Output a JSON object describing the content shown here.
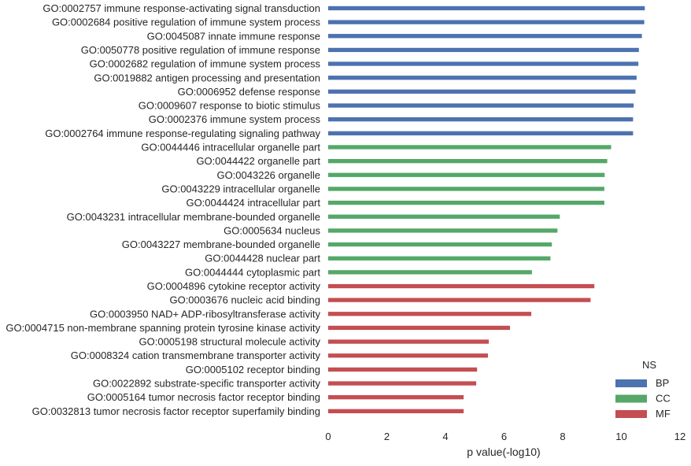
{
  "chart_data": {
    "type": "bar",
    "orientation": "horizontal",
    "xlabel": "p value(-log10)",
    "ylabel": "",
    "xlim": [
      0,
      12
    ],
    "xticks": [
      "0",
      "2",
      "4",
      "6",
      "8",
      "10",
      "12"
    ],
    "grid": false,
    "legend": {
      "title": "NS",
      "placement": "bottom-right",
      "entries": [
        {
          "name": "BP",
          "color": "#4c72b0"
        },
        {
          "name": "CC",
          "color": "#55a868"
        },
        {
          "name": "MF",
          "color": "#c44e52"
        }
      ]
    },
    "categories": [
      "GO:0002757 immune response-activating signal transduction",
      "GO:0002684 positive regulation of immune system process",
      "GO:0045087 innate immune response",
      "GO:0050778 positive regulation of immune response",
      "GO:0002682 regulation of immune system process",
      "GO:0019882 antigen processing and presentation",
      "GO:0006952 defense response",
      "GO:0009607 response to biotic stimulus",
      "GO:0002376 immune system process",
      "GO:0002764 immune response-regulating signaling pathway",
      "GO:0044446 intracellular organelle part",
      "GO:0044422 organelle part",
      "GO:0043226 organelle",
      "GO:0043229 intracellular organelle",
      "GO:0044424 intracellular part",
      "GO:0043231 intracellular membrane-bounded organelle",
      "GO:0005634 nucleus",
      "GO:0043227 membrane-bounded organelle",
      "GO:0044428 nuclear part",
      "GO:0044444 cytoplasmic part",
      "GO:0004896 cytokine receptor activity",
      "GO:0003676 nucleic acid binding",
      "GO:0003950 NAD+ ADP-ribosyltransferase activity",
      "GO:0004715 non-membrane spanning protein tyrosine kinase activity",
      "GO:0005198 structural molecule activity",
      "GO:0008324 cation transmembrane transporter activity",
      "GO:0005102 receptor binding",
      "GO:0022892 substrate-specific transporter activity",
      "GO:0005164 tumor necrosis factor receptor binding",
      "GO:0032813 tumor necrosis factor receptor superfamily binding"
    ],
    "values": [
      10.8,
      10.78,
      10.7,
      10.6,
      10.58,
      10.52,
      10.48,
      10.42,
      10.4,
      10.4,
      9.65,
      9.52,
      9.43,
      9.42,
      9.42,
      7.9,
      7.82,
      7.63,
      7.58,
      6.95,
      9.08,
      8.95,
      6.93,
      6.2,
      5.48,
      5.45,
      5.08,
      5.05,
      4.62,
      4.62
    ],
    "ns": [
      "BP",
      "BP",
      "BP",
      "BP",
      "BP",
      "BP",
      "BP",
      "BP",
      "BP",
      "BP",
      "CC",
      "CC",
      "CC",
      "CC",
      "CC",
      "CC",
      "CC",
      "CC",
      "CC",
      "CC",
      "MF",
      "MF",
      "MF",
      "MF",
      "MF",
      "MF",
      "MF",
      "MF",
      "MF",
      "MF"
    ]
  }
}
